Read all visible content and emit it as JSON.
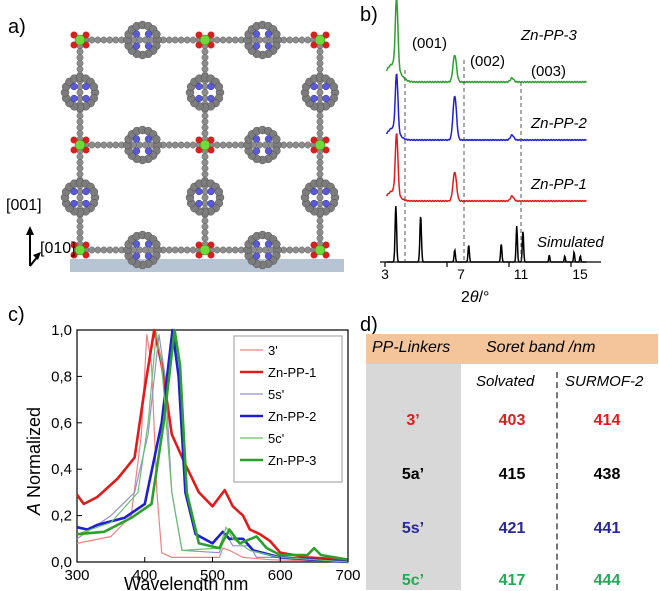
{
  "panels": {
    "a": "a)",
    "b": "b)",
    "c": "c)",
    "d": "d)"
  },
  "panel_a": {
    "axis_001": "[001]",
    "axis_010": "[010]"
  },
  "panel_b": {
    "peaks": [
      "(001)",
      "(002)",
      "(003)"
    ],
    "labels": [
      "Zn-PP-3",
      "Zn-PP-2",
      "Zn-PP-1",
      "Simulated"
    ],
    "colors": [
      "#2ca02c",
      "#1f1fd0",
      "#e11b1b",
      "#000000"
    ],
    "xticks": [
      "3",
      "7",
      "11",
      "15"
    ],
    "xlabel_pre": "2",
    "xlabel_theta": "θ",
    "xlabel_post": "/°"
  },
  "chart_data": {
    "type": "line",
    "xlabel": "Wavelength nm",
    "ylabel_italic": "A",
    "ylabel_rest": " Normalized",
    "xlim": [
      300,
      700
    ],
    "ylim": [
      0,
      1
    ],
    "xticks": [
      300,
      400,
      500,
      600,
      700
    ],
    "yticks": [
      "0,0",
      "0,2",
      "0,4",
      "0,6",
      "0,8",
      "1,0"
    ],
    "series": [
      {
        "name": "3'",
        "color": "#f08080",
        "width": 1.2,
        "points": [
          [
            300,
            0.08
          ],
          [
            350,
            0.11
          ],
          [
            380,
            0.2
          ],
          [
            395,
            0.55
          ],
          [
            403,
            0.98
          ],
          [
            410,
            0.85
          ],
          [
            418,
            0.3
          ],
          [
            425,
            0.04
          ],
          [
            440,
            0.02
          ],
          [
            510,
            0.02
          ],
          [
            515,
            0.06
          ],
          [
            525,
            0.05
          ],
          [
            545,
            0.02
          ],
          [
            585,
            0.01
          ],
          [
            700,
            0.0
          ]
        ]
      },
      {
        "name": "Zn-PP-1",
        "color": "#e11b1b",
        "width": 2.6,
        "points": [
          [
            300,
            0.29
          ],
          [
            310,
            0.25
          ],
          [
            330,
            0.28
          ],
          [
            360,
            0.36
          ],
          [
            385,
            0.45
          ],
          [
            400,
            0.75
          ],
          [
            414,
            1.0
          ],
          [
            425,
            0.85
          ],
          [
            440,
            0.55
          ],
          [
            460,
            0.42
          ],
          [
            480,
            0.3
          ],
          [
            500,
            0.24
          ],
          [
            518,
            0.31
          ],
          [
            530,
            0.24
          ],
          [
            545,
            0.2
          ],
          [
            555,
            0.14
          ],
          [
            570,
            0.12
          ],
          [
            585,
            0.09
          ],
          [
            600,
            0.04
          ],
          [
            640,
            0.02
          ],
          [
            700,
            0.01
          ]
        ]
      },
      {
        "name": "5s'",
        "color": "#9090d0",
        "width": 1.2,
        "points": [
          [
            300,
            0.1
          ],
          [
            350,
            0.2
          ],
          [
            385,
            0.3
          ],
          [
            405,
            0.55
          ],
          [
            421,
            0.98
          ],
          [
            430,
            0.8
          ],
          [
            440,
            0.3
          ],
          [
            455,
            0.05
          ],
          [
            510,
            0.04
          ],
          [
            520,
            0.12
          ],
          [
            530,
            0.07
          ],
          [
            555,
            0.07
          ],
          [
            565,
            0.02
          ],
          [
            600,
            0.02
          ],
          [
            700,
            0.0
          ]
        ]
      },
      {
        "name": "Zn-PP-2",
        "color": "#1f1fd0",
        "width": 2.6,
        "points": [
          [
            300,
            0.15
          ],
          [
            315,
            0.14
          ],
          [
            330,
            0.16
          ],
          [
            370,
            0.19
          ],
          [
            400,
            0.25
          ],
          [
            425,
            0.6
          ],
          [
            441,
            1.0
          ],
          [
            450,
            0.8
          ],
          [
            460,
            0.3
          ],
          [
            475,
            0.12
          ],
          [
            500,
            0.08
          ],
          [
            515,
            0.13
          ],
          [
            525,
            0.1
          ],
          [
            545,
            0.1
          ],
          [
            560,
            0.05
          ],
          [
            600,
            0.02
          ],
          [
            700,
            0.0
          ]
        ]
      },
      {
        "name": "5c'",
        "color": "#6cc06c",
        "width": 1.2,
        "points": [
          [
            300,
            0.12
          ],
          [
            350,
            0.17
          ],
          [
            390,
            0.3
          ],
          [
            405,
            0.6
          ],
          [
            417,
            0.99
          ],
          [
            425,
            0.85
          ],
          [
            440,
            0.3
          ],
          [
            455,
            0.05
          ],
          [
            510,
            0.06
          ],
          [
            520,
            0.15
          ],
          [
            530,
            0.1
          ],
          [
            555,
            0.05
          ],
          [
            600,
            0.02
          ],
          [
            700,
            0.0
          ]
        ]
      },
      {
        "name": "Zn-PP-3",
        "color": "#2ca02c",
        "width": 2.6,
        "points": [
          [
            300,
            0.12
          ],
          [
            340,
            0.13
          ],
          [
            380,
            0.19
          ],
          [
            410,
            0.25
          ],
          [
            428,
            0.6
          ],
          [
            444,
            1.0
          ],
          [
            452,
            0.85
          ],
          [
            462,
            0.3
          ],
          [
            480,
            0.08
          ],
          [
            510,
            0.06
          ],
          [
            525,
            0.14
          ],
          [
            540,
            0.08
          ],
          [
            565,
            0.11
          ],
          [
            580,
            0.06
          ],
          [
            600,
            0.03
          ],
          [
            640,
            0.03
          ],
          [
            650,
            0.06
          ],
          [
            660,
            0.03
          ],
          [
            700,
            0.01
          ]
        ]
      }
    ]
  },
  "table": {
    "header_col1": "PP-Linkers",
    "header_col2": "Soret band /nm",
    "sub1": "Solvated",
    "sub2": "SURMOF-2",
    "rows": [
      {
        "name": "3’",
        "solvated": "403",
        "surmof": "414",
        "color": "#e11b1b"
      },
      {
        "name": "5a’",
        "solvated": "415",
        "surmof": "438",
        "color": "#000000"
      },
      {
        "name": "5s’",
        "solvated": "421",
        "surmof": "441",
        "color": "#27279a"
      },
      {
        "name": "5c’",
        "solvated": "417",
        "surmof": "444",
        "color": "#22aa55"
      }
    ]
  }
}
